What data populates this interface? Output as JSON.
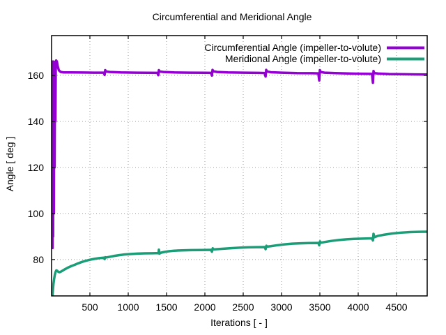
{
  "chart_data": {
    "type": "line",
    "title": "Circumferential and Meridional Angle",
    "xlabel": "Iterations [ - ]",
    "ylabel": "Angle [ deg ]",
    "xlim": [
      0,
      4900
    ],
    "ylim": [
      64.2,
      177.3
    ],
    "x_ticks": [
      500,
      1000,
      1500,
      2000,
      2500,
      3000,
      3500,
      4000,
      4500
    ],
    "y_ticks": [
      80,
      100,
      120,
      140,
      160
    ],
    "grid": "dotted-major-both-axes",
    "legend_position": "top-right-inside",
    "frame_color": "#000000",
    "grid_color": "#999999",
    "series": [
      {
        "name": "Circumferential Angle (impeller-to-volute)",
        "color": "#9400D3",
        "points": [
          [
            0,
            160
          ],
          [
            3,
            120
          ],
          [
            5,
            85
          ],
          [
            7,
            150
          ],
          [
            9,
            166
          ],
          [
            11,
            100
          ],
          [
            13,
            85
          ],
          [
            15,
            155
          ],
          [
            17,
            166
          ],
          [
            20,
            90
          ],
          [
            23,
            160
          ],
          [
            26,
            166
          ],
          [
            30,
            100
          ],
          [
            34,
            163
          ],
          [
            40,
            120
          ],
          [
            45,
            164
          ],
          [
            50,
            140
          ],
          [
            55,
            166
          ],
          [
            60,
            166.5
          ],
          [
            70,
            166
          ],
          [
            80,
            164
          ],
          [
            95,
            162.2
          ],
          [
            120,
            161.5
          ],
          [
            160,
            161.3
          ],
          [
            250,
            161.3
          ],
          [
            400,
            161.25
          ],
          [
            550,
            161.2
          ],
          [
            680,
            161.2
          ],
          [
            692,
            160.2
          ],
          [
            700,
            162.3
          ],
          [
            710,
            161.7
          ],
          [
            760,
            161.5
          ],
          [
            900,
            161.3
          ],
          [
            1100,
            161.2
          ],
          [
            1250,
            161.15
          ],
          [
            1380,
            161.1
          ],
          [
            1392,
            160.1
          ],
          [
            1400,
            162.3
          ],
          [
            1410,
            161.7
          ],
          [
            1460,
            161.5
          ],
          [
            1600,
            161.3
          ],
          [
            1800,
            161.2
          ],
          [
            2000,
            161.15
          ],
          [
            2080,
            161.1
          ],
          [
            2092,
            159.9
          ],
          [
            2100,
            162.4
          ],
          [
            2110,
            161.8
          ],
          [
            2160,
            161.5
          ],
          [
            2300,
            161.3
          ],
          [
            2500,
            161.2
          ],
          [
            2700,
            161.1
          ],
          [
            2780,
            161.05
          ],
          [
            2792,
            159.5
          ],
          [
            2800,
            162.4
          ],
          [
            2810,
            161.7
          ],
          [
            2860,
            161.4
          ],
          [
            3000,
            161.2
          ],
          [
            3200,
            161.0
          ],
          [
            3400,
            160.95
          ],
          [
            3480,
            160.9
          ],
          [
            3492,
            157.8
          ],
          [
            3500,
            162.3
          ],
          [
            3510,
            161.5
          ],
          [
            3560,
            161.2
          ],
          [
            3700,
            161.0
          ],
          [
            3900,
            160.8
          ],
          [
            4100,
            160.7
          ],
          [
            4180,
            160.65
          ],
          [
            4192,
            156.8
          ],
          [
            4200,
            161.9
          ],
          [
            4210,
            161.0
          ],
          [
            4260,
            160.8
          ],
          [
            4400,
            160.6
          ],
          [
            4600,
            160.5
          ],
          [
            4750,
            160.45
          ],
          [
            4900,
            160.4
          ]
        ]
      },
      {
        "name": "Meridional Angle (impeller-to-volute)",
        "color": "#1B9E77",
        "points": [
          [
            0,
            58
          ],
          [
            6,
            61
          ],
          [
            12,
            64.5
          ],
          [
            18,
            67
          ],
          [
            25,
            69.5
          ],
          [
            33,
            71.5
          ],
          [
            42,
            73.3
          ],
          [
            52,
            74.6
          ],
          [
            62,
            75.3
          ],
          [
            75,
            75.1
          ],
          [
            90,
            74.6
          ],
          [
            105,
            74.5
          ],
          [
            125,
            74.8
          ],
          [
            150,
            75.3
          ],
          [
            180,
            75.9
          ],
          [
            220,
            76.6
          ],
          [
            260,
            77.2
          ],
          [
            300,
            77.7
          ],
          [
            350,
            78.4
          ],
          [
            400,
            79.0
          ],
          [
            450,
            79.5
          ],
          [
            500,
            79.9
          ],
          [
            560,
            80.3
          ],
          [
            620,
            80.6
          ],
          [
            680,
            80.8
          ],
          [
            692,
            80.2
          ],
          [
            700,
            81.0
          ],
          [
            712,
            80.9
          ],
          [
            760,
            81.2
          ],
          [
            820,
            81.6
          ],
          [
            880,
            81.9
          ],
          [
            950,
            82.2
          ],
          [
            1030,
            82.4
          ],
          [
            1120,
            82.6
          ],
          [
            1220,
            82.7
          ],
          [
            1320,
            82.75
          ],
          [
            1385,
            82.8
          ],
          [
            1395,
            82.7
          ],
          [
            1400,
            84.3
          ],
          [
            1408,
            82.6
          ],
          [
            1430,
            83.0
          ],
          [
            1470,
            83.3
          ],
          [
            1530,
            83.6
          ],
          [
            1600,
            83.85
          ],
          [
            1700,
            84.0
          ],
          [
            1820,
            84.1
          ],
          [
            1950,
            84.15
          ],
          [
            2080,
            84.2
          ],
          [
            2092,
            83.4
          ],
          [
            2102,
            84.9
          ],
          [
            2112,
            84.4
          ],
          [
            2160,
            84.5
          ],
          [
            2240,
            84.7
          ],
          [
            2340,
            84.95
          ],
          [
            2450,
            85.15
          ],
          [
            2560,
            85.3
          ],
          [
            2670,
            85.38
          ],
          [
            2780,
            85.42
          ],
          [
            2792,
            84.5
          ],
          [
            2802,
            86.0
          ],
          [
            2812,
            85.6
          ],
          [
            2860,
            85.8
          ],
          [
            2940,
            86.2
          ],
          [
            3040,
            86.6
          ],
          [
            3140,
            86.9
          ],
          [
            3250,
            87.05
          ],
          [
            3360,
            87.15
          ],
          [
            3480,
            87.2
          ],
          [
            3492,
            86.2
          ],
          [
            3502,
            87.9
          ],
          [
            3512,
            87.3
          ],
          [
            3560,
            87.6
          ],
          [
            3650,
            88.1
          ],
          [
            3750,
            88.5
          ],
          [
            3850,
            88.8
          ],
          [
            3950,
            89.0
          ],
          [
            4060,
            89.1
          ],
          [
            4180,
            89.2
          ],
          [
            4192,
            88.3
          ],
          [
            4200,
            91.2
          ],
          [
            4212,
            89.7
          ],
          [
            4260,
            90.3
          ],
          [
            4340,
            90.8
          ],
          [
            4440,
            91.3
          ],
          [
            4560,
            91.7
          ],
          [
            4680,
            91.95
          ],
          [
            4800,
            92.05
          ],
          [
            4900,
            92.1
          ]
        ]
      }
    ]
  }
}
